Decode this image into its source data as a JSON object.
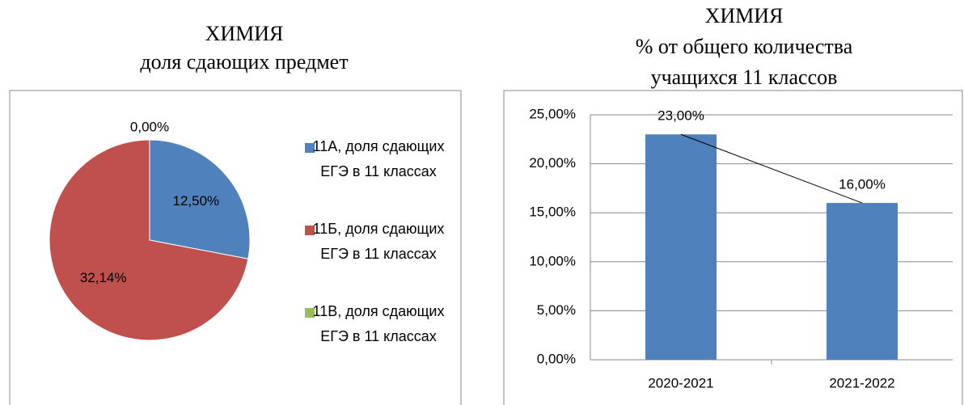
{
  "chart_data": [
    {
      "type": "pie",
      "title": [
        "ХИМИЯ",
        "доля сдающих предмет"
      ],
      "categories": [
        "11А, доля сдающих ЕГЭ в 11 классах",
        "11Б, доля сдающих ЕГЭ в 11 классах",
        "11В, доля сдающих ЕГЭ в 11 классах"
      ],
      "values": [
        12.5,
        32.14,
        0
      ],
      "value_labels": [
        "12,50%",
        "32,14%",
        "0,00%"
      ],
      "colors": [
        "#4f81bd",
        "#c0504d",
        "#9bbb59"
      ],
      "legend": "right"
    },
    {
      "type": "bar",
      "title": [
        "ХИМИЯ",
        "% от общего количества",
        "учащихся 11 классов"
      ],
      "categories": [
        "2020-2021",
        "2021-2022"
      ],
      "values": [
        23,
        16
      ],
      "value_labels": [
        "23,00%",
        "16,00%"
      ],
      "color": "#4f81bd",
      "ylim": [
        0,
        25
      ],
      "yticks": [
        {
          "value": 0,
          "label": "0,00%"
        },
        {
          "value": 5,
          "label": "5,00%"
        },
        {
          "value": 10,
          "label": "10,00%"
        },
        {
          "value": 15,
          "label": "15,00%"
        },
        {
          "value": 20,
          "label": "20,00%"
        },
        {
          "value": 25,
          "label": "25,00%"
        }
      ],
      "grid": true
    }
  ]
}
